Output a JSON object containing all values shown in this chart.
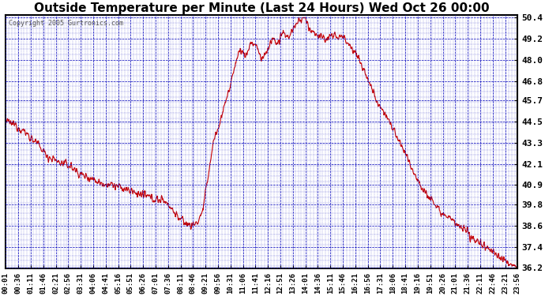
{
  "title": "Outside Temperature per Minute (Last 24 Hours) Wed Oct 26 00:00",
  "copyright": "Copyright 2005 Gurtronics.com",
  "ylabel_values": [
    50.4,
    49.2,
    48.0,
    46.8,
    45.7,
    44.5,
    43.3,
    42.1,
    40.9,
    39.8,
    38.6,
    37.4,
    36.2
  ],
  "ymin": 36.2,
  "ymax": 50.4,
  "line_color": "#cc0000",
  "grid_color": "#0000bb",
  "background_color": "#ffffff",
  "plot_bg_color": "#ffffff",
  "title_fontsize": 12,
  "xtick_labels": [
    "00:01",
    "00:36",
    "01:11",
    "01:46",
    "02:21",
    "02:56",
    "03:31",
    "04:06",
    "04:41",
    "05:16",
    "05:51",
    "06:26",
    "07:01",
    "07:36",
    "08:11",
    "08:46",
    "09:21",
    "09:56",
    "10:31",
    "11:06",
    "11:41",
    "12:16",
    "12:51",
    "13:26",
    "14:01",
    "14:36",
    "15:11",
    "15:46",
    "16:21",
    "16:56",
    "17:31",
    "18:06",
    "18:41",
    "19:16",
    "19:51",
    "20:26",
    "21:01",
    "21:36",
    "22:11",
    "22:46",
    "23:21",
    "23:56"
  ],
  "control_t": [
    0,
    0.5,
    1.0,
    1.5,
    2.0,
    2.5,
    3.0,
    3.5,
    4.0,
    4.5,
    5.0,
    5.5,
    6.0,
    6.5,
    7.0,
    7.5,
    8.0,
    8.25,
    8.5,
    8.75,
    9.0,
    9.25,
    9.5,
    9.75,
    10.0,
    10.25,
    10.5,
    10.75,
    11.0,
    11.25,
    11.5,
    11.75,
    12.0,
    12.25,
    12.5,
    12.75,
    13.0,
    13.25,
    13.5,
    13.75,
    14.0,
    14.25,
    14.5,
    14.75,
    15.0,
    15.25,
    15.5,
    15.75,
    16.0,
    16.5,
    17.0,
    17.5,
    18.0,
    18.5,
    19.0,
    19.5,
    20.0,
    20.5,
    21.0,
    21.5,
    22.0,
    22.5,
    23.0,
    23.5,
    24.0
  ],
  "control_v": [
    44.5,
    44.3,
    43.8,
    43.2,
    42.5,
    42.2,
    42.0,
    41.5,
    41.3,
    41.0,
    40.9,
    40.7,
    40.5,
    40.3,
    40.1,
    40.0,
    39.2,
    38.9,
    38.7,
    38.6,
    38.8,
    39.5,
    41.5,
    43.5,
    44.2,
    45.5,
    46.3,
    47.8,
    48.6,
    48.2,
    49.0,
    48.8,
    48.0,
    48.5,
    49.2,
    48.9,
    49.5,
    49.3,
    49.8,
    50.2,
    50.4,
    49.8,
    49.5,
    49.3,
    49.2,
    49.3,
    49.4,
    49.3,
    49.1,
    48.2,
    46.8,
    45.5,
    44.5,
    43.2,
    42.0,
    40.8,
    40.0,
    39.3,
    38.8,
    38.3,
    37.8,
    37.4,
    37.0,
    36.5,
    36.2
  ]
}
